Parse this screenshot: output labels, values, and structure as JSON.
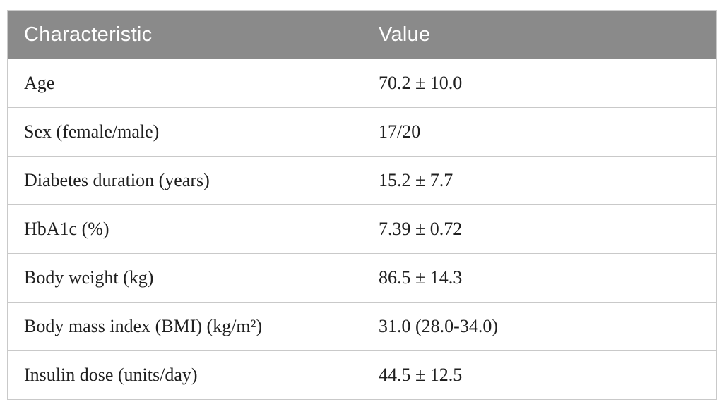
{
  "colors": {
    "header_bg": "#8a8a8a",
    "header_text": "#ffffff",
    "body_text": "#1f1f1f",
    "divider": "#c9c9c9",
    "page_bg": "#ffffff"
  },
  "table": {
    "columns": [
      {
        "label": "Characteristic"
      },
      {
        "label": "Value"
      }
    ],
    "rows": [
      {
        "characteristic": "Age",
        "value": "70.2 ± 10.0"
      },
      {
        "characteristic": "Sex (female/male)",
        "value": "17/20"
      },
      {
        "characteristic": "Diabetes duration (years)",
        "value": "15.2 ± 7.7"
      },
      {
        "characteristic": "HbA1c (%)",
        "value": "7.39 ± 0.72"
      },
      {
        "characteristic": "Body weight (kg)",
        "value": "86.5 ± 14.3"
      },
      {
        "characteristic": "Body mass index (BMI) (kg/m²)",
        "value": "31.0 (28.0-34.0)"
      },
      {
        "characteristic": "Insulin dose (units/day)",
        "value": "44.5 ± 12.5"
      }
    ]
  }
}
